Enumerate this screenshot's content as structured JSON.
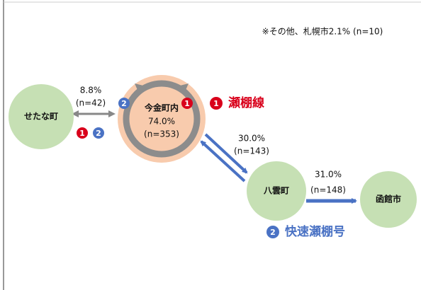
{
  "note": "※その他、札幌市2.1% (n=10)",
  "nodes": [
    {
      "label": "せたな町"
    },
    {
      "label": "今金町内",
      "share": "74.0%",
      "n": "(n=353)"
    },
    {
      "label": "八雲町"
    },
    {
      "label": "函館市"
    }
  ],
  "edges": [
    {
      "share": "8.8%",
      "n": "(n=42)"
    },
    {
      "share": "30.0%",
      "n": "(n=143)"
    },
    {
      "share": "31.0%",
      "n": "(n=148)"
    }
  ],
  "legend": [
    {
      "number": "1",
      "label": "瀬棚線"
    },
    {
      "number": "2",
      "label": "快速瀬棚号"
    }
  ]
}
